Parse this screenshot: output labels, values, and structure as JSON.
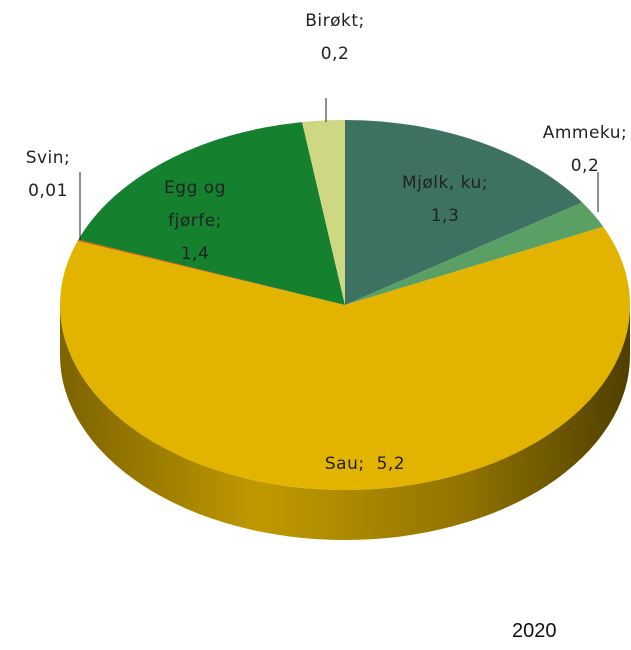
{
  "chart_data": {
    "type": "pie",
    "categories": [
      "Mjølk, ku;",
      "Ammeku;",
      "Sau;",
      "Svin;",
      "Egg og fjørfe;",
      "Birøkt;"
    ],
    "values": [
      1.3,
      0.2,
      5.2,
      0.01,
      1.4,
      0.2
    ],
    "value_labels": [
      "1,3",
      "0,2",
      "5,2",
      "0,01",
      "1,4",
      "0,2"
    ],
    "colors": [
      "#3d7262",
      "#5aa064",
      "#e2b400",
      "#e05a00",
      "#15802e",
      "#ced882"
    ],
    "annotation": "2020"
  }
}
